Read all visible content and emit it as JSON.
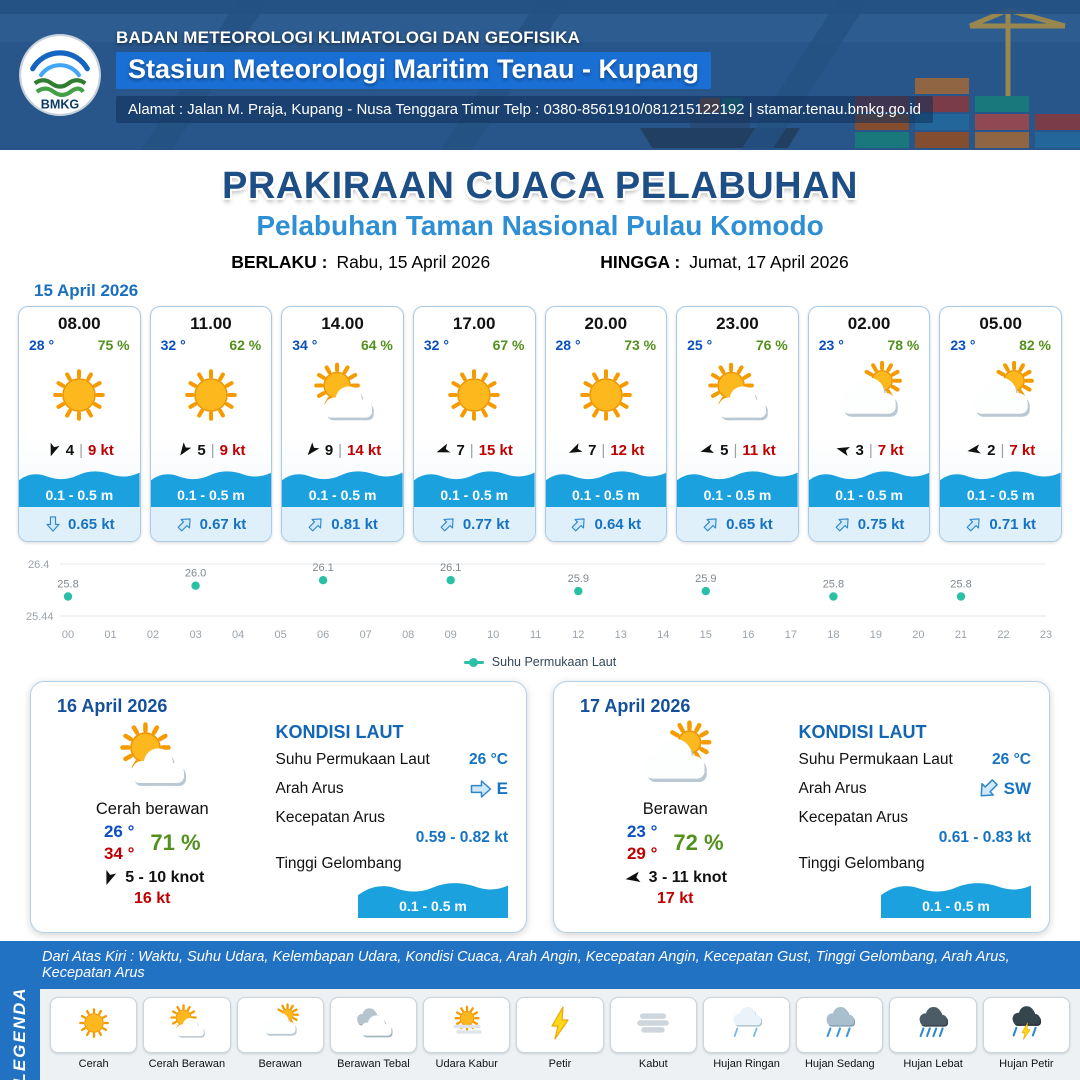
{
  "header": {
    "logo_text": "BMKG",
    "agency": "BADAN METEOROLOGI KLIMATOLOGI DAN GEOFISIKA",
    "station": "Stasiun Meteorologi Maritim Tenau - Kupang",
    "address": "Alamat : Jalan M. Praja, Kupang - Nusa Tenggara Timur Telp : 0380-8561910/081215122192  | stamar.tenau.bmkg.go.id"
  },
  "title": {
    "main": "PRAKIRAAN CUACA PELABUHAN",
    "subtitle": "Pelabuhan Taman Nasional Pulau Komodo",
    "valid_from_label": "BERLAKU :",
    "valid_from": "Rabu, 15 April 2026",
    "valid_to_label": "HINGGA :",
    "valid_to": "Jumat, 17 April 2026"
  },
  "labels": {
    "kondisi_laut": "KONDISI LAUT",
    "sst": "Suhu Permukaan Laut",
    "arah_arus": "Arah Arus",
    "kecepatan_arus": "Kecepatan Arus",
    "tinggi_gelombang": "Tinggi Gelombang",
    "divider": "|"
  },
  "hourly": {
    "date": "15 April 2026",
    "cards": [
      {
        "time": "08.00",
        "temp": "28 °",
        "humidity": "75 %",
        "icon": "cerah",
        "wind_deg": 200,
        "wind_speed": "4",
        "gust": "9 kt",
        "wave": "0.1 - 0.5 m",
        "current_deg": 180,
        "current_speed": "0.65 kt"
      },
      {
        "time": "11.00",
        "temp": "32 °",
        "humidity": "62 %",
        "icon": "cerah",
        "wind_deg": 215,
        "wind_speed": "5",
        "gust": "9 kt",
        "wave": "0.1 - 0.5 m",
        "current_deg": 45,
        "current_speed": "0.67 kt"
      },
      {
        "time": "14.00",
        "temp": "34 °",
        "humidity": "64 %",
        "icon": "cerah-berawan",
        "wind_deg": 220,
        "wind_speed": "9",
        "gust": "14 kt",
        "wave": "0.1 - 0.5 m",
        "current_deg": 45,
        "current_speed": "0.81 kt"
      },
      {
        "time": "17.00",
        "temp": "32 °",
        "humidity": "67 %",
        "icon": "cerah",
        "wind_deg": 250,
        "wind_speed": "7",
        "gust": "15 kt",
        "wave": "0.1 - 0.5 m",
        "current_deg": 45,
        "current_speed": "0.77 kt"
      },
      {
        "time": "20.00",
        "temp": "28 °",
        "humidity": "73 %",
        "icon": "cerah",
        "wind_deg": 245,
        "wind_speed": "7",
        "gust": "12 kt",
        "wave": "0.1 - 0.5 m",
        "current_deg": 45,
        "current_speed": "0.64 kt"
      },
      {
        "time": "23.00",
        "temp": "25 °",
        "humidity": "76 %",
        "icon": "cerah-berawan",
        "wind_deg": 255,
        "wind_speed": "5",
        "gust": "11 kt",
        "wave": "0.1 - 0.5 m",
        "current_deg": 45,
        "current_speed": "0.65 kt"
      },
      {
        "time": "02.00",
        "temp": "23 °",
        "humidity": "78 %",
        "icon": "berawan",
        "wind_deg": 285,
        "wind_speed": "3",
        "gust": "7 kt",
        "wave": "0.1 - 0.5 m",
        "current_deg": 45,
        "current_speed": "0.75 kt"
      },
      {
        "time": "05.00",
        "temp": "23 °",
        "humidity": "82 %",
        "icon": "berawan",
        "wind_deg": 260,
        "wind_speed": "2",
        "gust": "7 kt",
        "wave": "0.1 - 0.5 m",
        "current_deg": 45,
        "current_speed": "0.71 kt"
      }
    ]
  },
  "chart_data": {
    "type": "scatter",
    "title": "",
    "xlabel": "",
    "ylabel": "",
    "series_name": "Suhu Permukaan Laut",
    "x": [
      0,
      3,
      6,
      9,
      12,
      15,
      18,
      21
    ],
    "values": [
      25.8,
      26.0,
      26.1,
      26.1,
      25.9,
      25.9,
      25.8,
      25.8
    ],
    "ylim": [
      25.44,
      26.4
    ],
    "xticks": [
      "00",
      "01",
      "02",
      "03",
      "04",
      "05",
      "06",
      "07",
      "08",
      "09",
      "10",
      "11",
      "12",
      "13",
      "14",
      "15",
      "16",
      "17",
      "18",
      "19",
      "20",
      "21",
      "22",
      "23"
    ],
    "grid": true,
    "legend_position": "bottom",
    "point_color": "#2ac0a6"
  },
  "daily": [
    {
      "date": "16 April 2026",
      "icon": "cerah-berawan",
      "condition": "Cerah berawan",
      "temp_min": "26 °",
      "temp_max": "34 °",
      "humidity": "71 %",
      "wind_deg": 200,
      "wind_range": "5  - 10 knot",
      "gust": "16 kt",
      "sea": {
        "sst": "26 °C",
        "dir": "E",
        "dir_deg": 90,
        "speed": "0.59 - 0.82 kt",
        "wave": "0.1 - 0.5 m"
      }
    },
    {
      "date": "17 April 2026",
      "icon": "berawan",
      "condition": "Berawan",
      "temp_min": "23 °",
      "temp_max": "29 °",
      "humidity": "72 %",
      "wind_deg": 260,
      "wind_range": "3  - 11 knot",
      "gust": "17 kt",
      "sea": {
        "sst": "26 °C",
        "dir": "SW",
        "dir_deg": 225,
        "speed": "0.61 - 0.83 kt",
        "wave": "0.1 - 0.5 m"
      }
    }
  ],
  "legend": {
    "title": "LEGENDA",
    "note": "Dari Atas Kiri : Waktu, Suhu Udara, Kelembapan Udara, Kondisi Cuaca, Arah Angin, Kecepatan Angin, Kecepatan Gust, Tinggi Gelombang, Arah Arus, Kecepatan Arus",
    "items": [
      {
        "label": "Cerah",
        "icon": "cerah"
      },
      {
        "label": "Cerah Berawan",
        "icon": "cerah-berawan"
      },
      {
        "label": "Berawan",
        "icon": "berawan"
      },
      {
        "label": "Berawan Tebal",
        "icon": "berawan-tebal"
      },
      {
        "label": "Udara Kabur",
        "icon": "udara-kabur"
      },
      {
        "label": "Petir",
        "icon": "petir"
      },
      {
        "label": "Kabut",
        "icon": "kabut"
      },
      {
        "label": "Hujan Ringan",
        "icon": "hujan-ringan"
      },
      {
        "label": "Hujan Sedang",
        "icon": "hujan-sedang"
      },
      {
        "label": "Hujan Lebat",
        "icon": "hujan-lebat"
      },
      {
        "label": "Hujan Petir",
        "icon": "hujan-petir"
      }
    ]
  },
  "colors": {
    "accent_blue": "#1d4f86",
    "subtitle_blue": "#2f8fd4",
    "temp_blue": "#0b50c0",
    "humidity_green": "#53901d",
    "gust_red": "#c00000",
    "wave_blue": "#1ba2de",
    "footer_blue": "#2272c3",
    "sst_point": "#2ac0a6"
  }
}
